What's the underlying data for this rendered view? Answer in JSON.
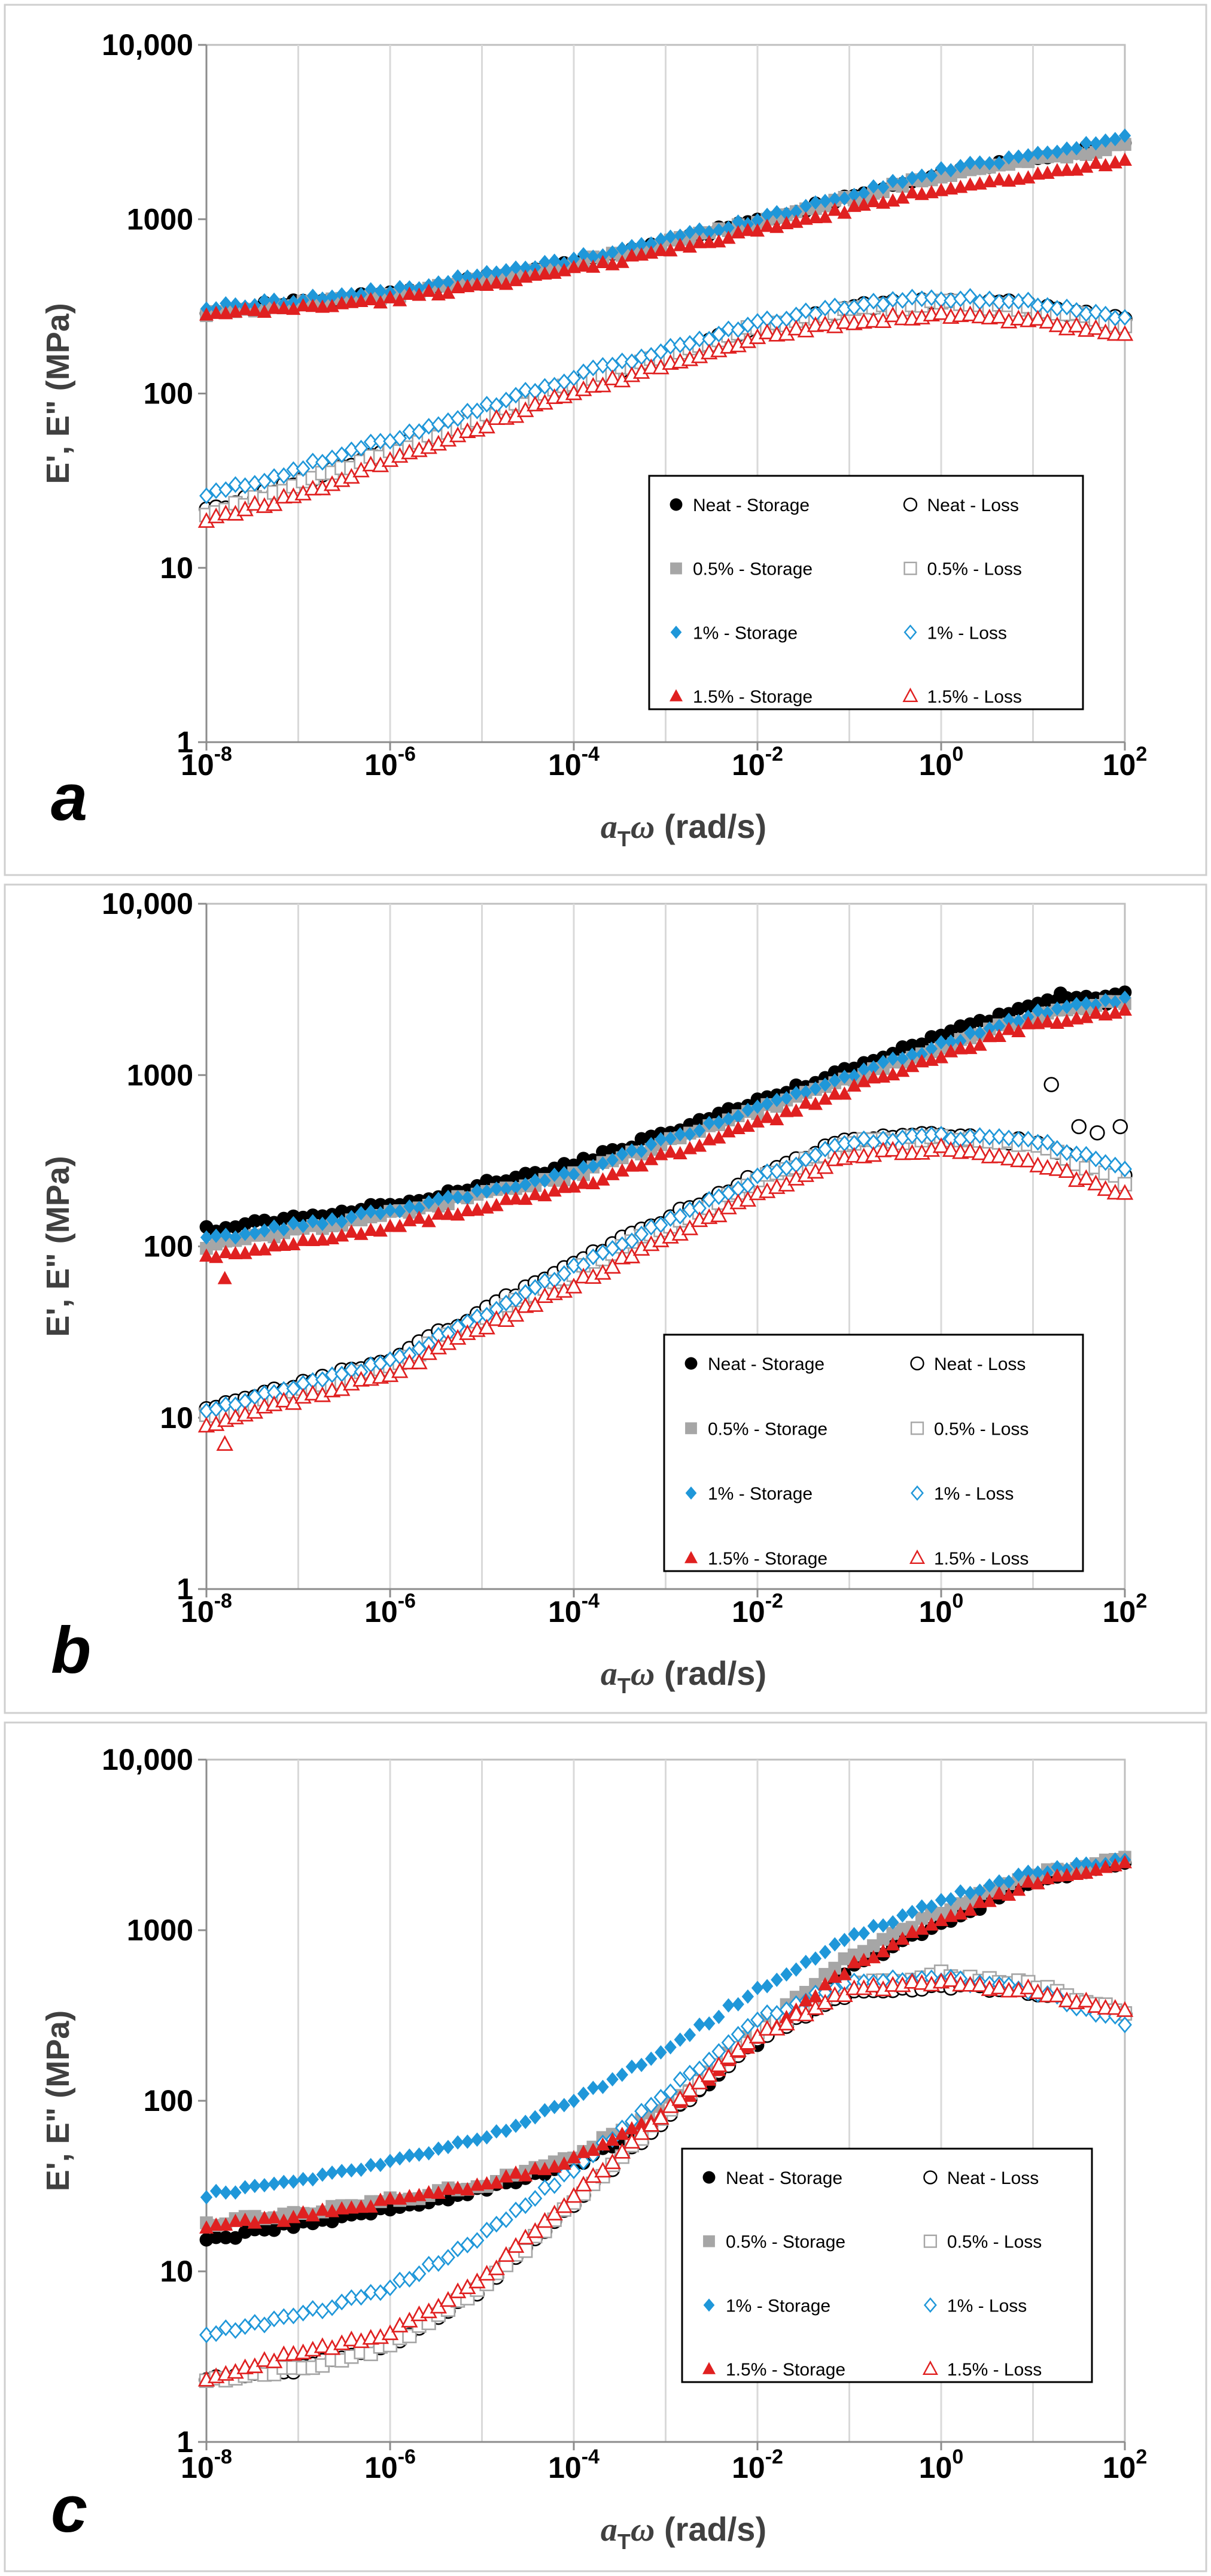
{
  "figure": {
    "panels": [
      "a",
      "b",
      "c"
    ]
  },
  "legend_order": [
    [
      "Neat - Storage",
      "Neat - Loss"
    ],
    [
      "0.5% - Storage",
      "0.5% - Loss"
    ],
    [
      "1% - Storage",
      "1% - Loss"
    ],
    [
      "1.5% - Storage",
      "1.5% - Loss"
    ]
  ],
  "series_style": {
    "Neat - Storage": {
      "marker": "circle",
      "filled": true,
      "color": "#000000"
    },
    "Neat - Loss": {
      "marker": "circle",
      "filled": false,
      "color": "#000000"
    },
    "0.5% - Storage": {
      "marker": "square",
      "filled": true,
      "color": "#a6a6a6"
    },
    "0.5% - Loss": {
      "marker": "square",
      "filled": false,
      "color": "#a6a6a6"
    },
    "1% - Storage": {
      "marker": "diamond",
      "filled": true,
      "color": "#1f97d9"
    },
    "1% - Loss": {
      "marker": "diamond",
      "filled": false,
      "color": "#1f97d9"
    },
    "1.5% - Storage": {
      "marker": "triangle",
      "filled": true,
      "color": "#e02020"
    },
    "1.5% - Loss": {
      "marker": "triangle",
      "filled": false,
      "color": "#e02020"
    }
  },
  "chart_data": [
    {
      "panel_label": "a",
      "type": "scatter",
      "xscale": "log",
      "yscale": "log",
      "xlim": [
        1e-08,
        100
      ],
      "ylim": [
        1,
        10000
      ],
      "xlabel": "aTω (rad/s)",
      "ylabel": "E', E\" (MPa)",
      "x_ticks": [
        -8,
        -6,
        -4,
        -2,
        0,
        2
      ],
      "y_tick_labels": [
        "1",
        "10",
        "100",
        "1000",
        "10,000"
      ],
      "grid": "vertical",
      "legend_position": "bottom-right",
      "series": [
        {
          "name": "Neat - Storage",
          "curve": [
            [
              -8,
              300
            ],
            [
              -6,
              370
            ],
            [
              -4,
              560
            ],
            [
              -2,
              980
            ],
            [
              0,
              1850
            ],
            [
              2,
              2750
            ]
          ]
        },
        {
          "name": "Neat - Loss",
          "curve": [
            [
              -8,
              21
            ],
            [
              -7,
              31
            ],
            [
              -6,
              48
            ],
            [
              -4,
              115
            ],
            [
              -2,
              245
            ],
            [
              -1,
              310
            ],
            [
              0,
              345
            ],
            [
              1,
              320
            ],
            [
              2,
              260
            ]
          ]
        },
        {
          "name": "0.5% - Storage",
          "curve": [
            [
              -8,
              290
            ],
            [
              -6,
              360
            ],
            [
              -4,
              550
            ],
            [
              -2,
              960
            ],
            [
              0,
              1800
            ],
            [
              2,
              2650
            ]
          ]
        },
        {
          "name": "0.5% - Loss",
          "curve": [
            [
              -8,
              20
            ],
            [
              -7,
              30
            ],
            [
              -6,
              46
            ],
            [
              -4,
              112
            ],
            [
              -2,
              240
            ],
            [
              -1,
              300
            ],
            [
              0,
              330
            ],
            [
              1,
              305
            ],
            [
              2,
              250
            ]
          ]
        },
        {
          "name": "1% - Storage",
          "curve": [
            [
              -8,
              310
            ],
            [
              -6,
              390
            ],
            [
              -4,
              590
            ],
            [
              -2,
              1000
            ],
            [
              0,
              1900
            ],
            [
              2,
              2950
            ]
          ]
        },
        {
          "name": "1% - Loss",
          "curve": [
            [
              -8,
              26
            ],
            [
              -7,
              37
            ],
            [
              -6,
              55
            ],
            [
              -4,
              125
            ],
            [
              -2,
              255
            ],
            [
              -1,
              320
            ],
            [
              0,
              355
            ],
            [
              1,
              335
            ],
            [
              2,
              270
            ]
          ]
        },
        {
          "name": "1.5% - Storage",
          "curve": [
            [
              -8,
              280
            ],
            [
              -6,
              345
            ],
            [
              -4,
              510
            ],
            [
              -2,
              860
            ],
            [
              0,
              1500
            ],
            [
              2,
              2150
            ]
          ]
        },
        {
          "name": "1.5% - Loss",
          "curve": [
            [
              -8,
              19
            ],
            [
              -7,
              26
            ],
            [
              -6,
              42
            ],
            [
              -4,
              100
            ],
            [
              -2,
              210
            ],
            [
              -1,
              260
            ],
            [
              0,
              285
            ],
            [
              1,
              260
            ],
            [
              2,
              215
            ]
          ]
        }
      ]
    },
    {
      "panel_label": "b",
      "type": "scatter",
      "xscale": "log",
      "yscale": "log",
      "xlim": [
        1e-08,
        100
      ],
      "ylim": [
        1,
        10000
      ],
      "xlabel": "aTω (rad/s)",
      "ylabel": "E', E\" (MPa)",
      "x_ticks": [
        -8,
        -6,
        -4,
        -2,
        0,
        2
      ],
      "y_tick_labels": [
        "1",
        "10",
        "100",
        "1000",
        "10,000"
      ],
      "grid": "vertical",
      "legend_position": "bottom-right",
      "series": [
        {
          "name": "Neat - Storage",
          "curve": [
            [
              -8,
              125
            ],
            [
              -6,
              175
            ],
            [
              -4,
              300
            ],
            [
              -2,
              700
            ],
            [
              0,
              1700
            ],
            [
              1,
              2600
            ],
            [
              2,
              3000
            ]
          ],
          "outliers": [
            [
              1.3,
              3000
            ],
            [
              1.8,
              2600
            ]
          ]
        },
        {
          "name": "Neat - Loss",
          "curve": [
            [
              -8,
              11
            ],
            [
              -6,
              22
            ],
            [
              -4,
              80
            ],
            [
              -2,
              260
            ],
            [
              -1,
              420
            ],
            [
              0,
              450
            ],
            [
              1,
              400
            ],
            [
              2,
              260
            ]
          ],
          "outliers": [
            [
              1.2,
              880
            ],
            [
              1.5,
              500
            ],
            [
              1.7,
              460
            ],
            [
              1.95,
              500
            ]
          ]
        },
        {
          "name": "0.5% - Storage",
          "curve": [
            [
              -8,
              100
            ],
            [
              -6,
              155
            ],
            [
              -4,
              260
            ],
            [
              -2,
              620
            ],
            [
              0,
              1450
            ],
            [
              1,
              2200
            ],
            [
              2,
              2700
            ]
          ]
        },
        {
          "name": "0.5% - Loss",
          "curve": [
            [
              -8,
              10
            ],
            [
              -6,
              20
            ],
            [
              -4,
              70
            ],
            [
              -2,
              240
            ],
            [
              -1,
              400
            ],
            [
              0,
              430
            ],
            [
              1,
              390
            ],
            [
              2,
              240
            ]
          ]
        },
        {
          "name": "1% - Storage",
          "curve": [
            [
              -8,
              110
            ],
            [
              -6,
              160
            ],
            [
              -4,
              270
            ],
            [
              -2,
              640
            ],
            [
              0,
              1500
            ],
            [
              1,
              2300
            ],
            [
              2,
              2800
            ]
          ]
        },
        {
          "name": "1% - Loss",
          "curve": [
            [
              -8,
              11
            ],
            [
              -6,
              21
            ],
            [
              -4,
              75
            ],
            [
              -2,
              250
            ],
            [
              -1,
              410
            ],
            [
              0,
              440
            ],
            [
              1,
              420
            ],
            [
              2,
              280
            ]
          ]
        },
        {
          "name": "1.5% - Storage",
          "curve": [
            [
              -8,
              85
            ],
            [
              -6,
              130
            ],
            [
              -4,
              220
            ],
            [
              -2,
              520
            ],
            [
              0,
              1300
            ],
            [
              1,
              2000
            ],
            [
              2,
              2350
            ]
          ],
          "outliers": [
            [
              -7.8,
              65
            ]
          ]
        },
        {
          "name": "1.5% - Loss",
          "curve": [
            [
              -8,
              9
            ],
            [
              -6,
              18
            ],
            [
              -4,
              60
            ],
            [
              -2,
              200
            ],
            [
              -1,
              340
            ],
            [
              0,
              370
            ],
            [
              1,
              310
            ],
            [
              2,
              200
            ]
          ],
          "outliers": [
            [
              -7.8,
              7
            ]
          ]
        }
      ]
    },
    {
      "panel_label": "c",
      "type": "scatter",
      "xscale": "log",
      "yscale": "log",
      "xlim": [
        1e-08,
        100
      ],
      "ylim": [
        1,
        10000
      ],
      "xlabel": "aTω (rad/s)",
      "ylabel": "E', E\" (MPa)",
      "x_ticks": [
        -8,
        -6,
        -4,
        -2,
        0,
        2
      ],
      "y_tick_labels": [
        "1",
        "10",
        "100",
        "1000",
        "10,000"
      ],
      "grid": "vertical",
      "legend_position": "bottom-right",
      "series": [
        {
          "name": "Neat - Storage",
          "curve": [
            [
              -8,
              15
            ],
            [
              -7,
              19
            ],
            [
              -6,
              23
            ],
            [
              -5,
              30
            ],
            [
              -4,
              42
            ],
            [
              -3,
              80
            ],
            [
              -2,
              220
            ],
            [
              -1,
              600
            ],
            [
              0,
              1100
            ],
            [
              1,
              1900
            ],
            [
              2,
              2500
            ]
          ]
        },
        {
          "name": "Neat - Loss",
          "curve": [
            [
              -8,
              2.3
            ],
            [
              -7,
              2.7
            ],
            [
              -6,
              3.6
            ],
            [
              -5,
              8
            ],
            [
              -4,
              25
            ],
            [
              -3,
              80
            ],
            [
              -2,
              230
            ],
            [
              -1,
              430
            ],
            [
              0,
              480
            ],
            [
              1,
              440
            ],
            [
              2,
              320
            ]
          ]
        },
        {
          "name": "0.5% - Storage",
          "curve": [
            [
              -8,
              19
            ],
            [
              -7,
              22
            ],
            [
              -6,
              26
            ],
            [
              -5,
              32
            ],
            [
              -4,
              48
            ],
            [
              -3,
              90
            ],
            [
              -2,
              260
            ],
            [
              -1,
              700
            ],
            [
              0,
              1300
            ],
            [
              1,
              2100
            ],
            [
              2,
              2700
            ]
          ]
        },
        {
          "name": "0.5% - Loss",
          "curve": [
            [
              -8,
              2.3
            ],
            [
              -7,
              2.7
            ],
            [
              -6,
              3.6
            ],
            [
              -5,
              8
            ],
            [
              -4,
              25
            ],
            [
              -3,
              85
            ],
            [
              -2,
              250
            ],
            [
              -1,
              470
            ],
            [
              0,
              550
            ],
            [
              1,
              480
            ],
            [
              2,
              330
            ]
          ]
        },
        {
          "name": "1% - Storage",
          "curve": [
            [
              -8,
              28
            ],
            [
              -7,
              34
            ],
            [
              -6,
              44
            ],
            [
              -5,
              60
            ],
            [
              -4,
              100
            ],
            [
              -3,
              200
            ],
            [
              -2,
              450
            ],
            [
              -1,
              900
            ],
            [
              0,
              1500
            ],
            [
              1,
              2200
            ],
            [
              2,
              2600
            ]
          ]
        },
        {
          "name": "1% - Loss",
          "curve": [
            [
              -8,
              4.3
            ],
            [
              -7,
              5.5
            ],
            [
              -6,
              8
            ],
            [
              -5,
              16
            ],
            [
              -4,
              40
            ],
            [
              -3,
              110
            ],
            [
              -2,
              300
            ],
            [
              -1,
              500
            ],
            [
              0,
              520
            ],
            [
              1,
              440
            ],
            [
              2,
              290
            ]
          ]
        },
        {
          "name": "1.5% - Storage",
          "curve": [
            [
              -8,
              18
            ],
            [
              -7,
              21
            ],
            [
              -6,
              26
            ],
            [
              -5,
              32
            ],
            [
              -4,
              45
            ],
            [
              -3,
              85
            ],
            [
              -2,
              230
            ],
            [
              -1,
              600
            ],
            [
              0,
              1150
            ],
            [
              1,
              1900
            ],
            [
              2,
              2400
            ]
          ]
        },
        {
          "name": "1.5% - Loss",
          "curve": [
            [
              -8,
              2.4
            ],
            [
              -7,
              3.3
            ],
            [
              -6,
              4.3
            ],
            [
              -5,
              9
            ],
            [
              -4,
              28
            ],
            [
              -3,
              85
            ],
            [
              -2,
              240
            ],
            [
              -1,
              440
            ],
            [
              0,
              500
            ],
            [
              1,
              440
            ],
            [
              2,
              330
            ]
          ]
        }
      ]
    }
  ]
}
